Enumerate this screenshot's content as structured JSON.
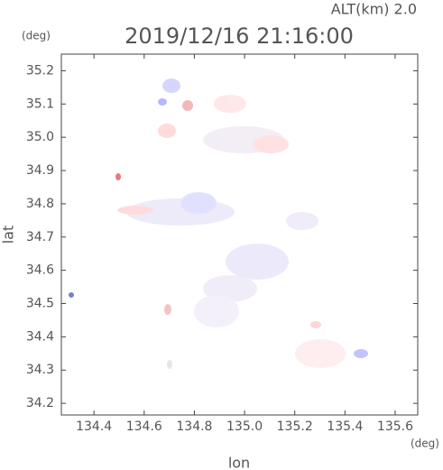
{
  "chart_data": {
    "type": "map",
    "title": "2019/12/16 21:16:00",
    "subtitle": "ALT(km) 2.0",
    "y_unit": "(deg)",
    "x_unit": "(deg)",
    "xlabel": "lon",
    "ylabel": "lat",
    "xlim": [
      134.27,
      135.69
    ],
    "ylim": [
      34.165,
      35.25
    ],
    "xticks": [
      134.4,
      134.6,
      134.8,
      {
        "value": 135,
        "label": "135.0"
      },
      135.2,
      135.4,
      135.6
    ],
    "yticks": [
      34.2,
      34.3,
      34.4,
      34.5,
      34.6,
      34.7,
      34.8,
      34.9,
      {
        "value": 35,
        "label": "35.0"
      },
      35.1,
      35.2
    ]
  }
}
